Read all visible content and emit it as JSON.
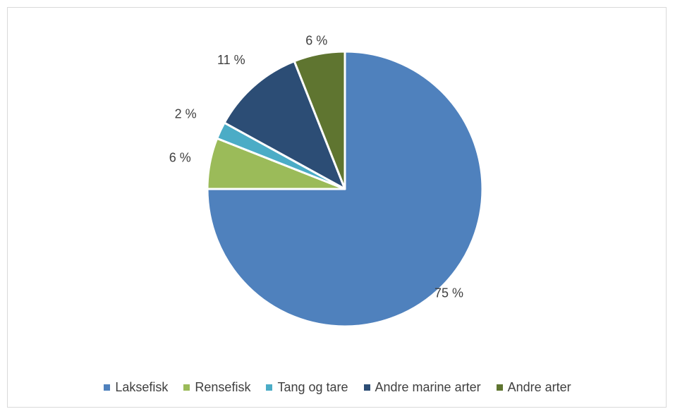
{
  "chart_data": {
    "type": "pie",
    "title": "",
    "categories": [
      "Laksefisk",
      "Rensefisk",
      "Tang og tare",
      "Andre marine arter",
      "Andre arter"
    ],
    "values": [
      75,
      6,
      2,
      11,
      6
    ],
    "data_labels": [
      "75 %",
      "6 %",
      "2 %",
      "11 %",
      "6 %"
    ],
    "colors": [
      "#4f81bd",
      "#9bbb59",
      "#4bacc6",
      "#2c4d75",
      "#5f7530"
    ],
    "start_angle_deg": 0,
    "direction": "clockwise",
    "legend_position": "bottom"
  }
}
